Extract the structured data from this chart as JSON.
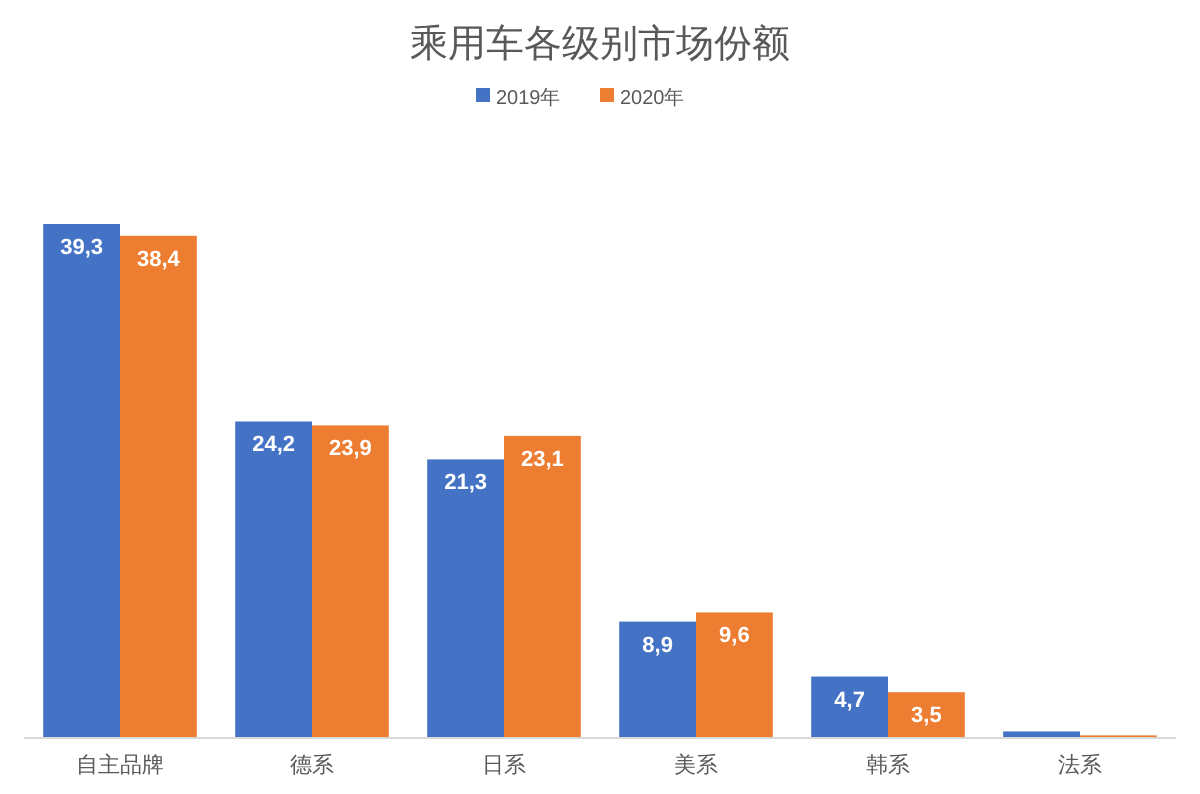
{
  "chart_data": {
    "type": "bar",
    "title": "乘用车各级别市场份额",
    "categories": [
      "自主品牌",
      "德系",
      "日系",
      "美系",
      "韩系",
      "法系"
    ],
    "series": [
      {
        "name": "2019年",
        "color": "#4472c4",
        "values": [
          39.3,
          24.2,
          21.3,
          8.9,
          4.7,
          0.5
        ],
        "value_labels": [
          "39,3",
          "24,2",
          "21,3",
          "8,9",
          "4,7",
          null
        ]
      },
      {
        "name": "2020年",
        "color": "#ed7d31",
        "values": [
          38.4,
          23.9,
          23.1,
          9.6,
          3.5,
          0.2
        ],
        "value_labels": [
          "38,4",
          "23,9",
          "23,1",
          "9,6",
          "3,5",
          null
        ]
      }
    ],
    "legend": "top",
    "grid": false
  }
}
